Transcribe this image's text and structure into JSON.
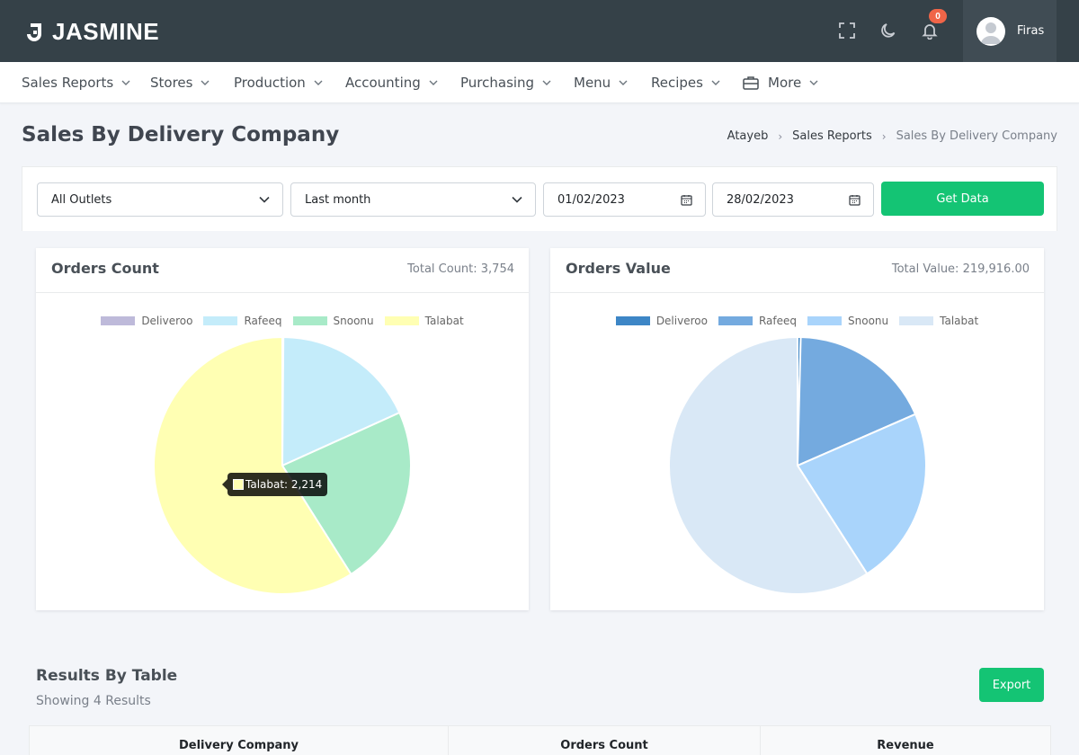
{
  "app": {
    "brand": "JASMINE"
  },
  "header": {
    "notifications_count": "0",
    "user_name": "Firas",
    "icons": [
      "fullscreen-icon",
      "moon-icon",
      "bell-icon",
      "user-avatar-icon"
    ]
  },
  "nav": {
    "items": [
      {
        "label": "Sales Reports"
      },
      {
        "label": "Stores"
      },
      {
        "label": "Production"
      },
      {
        "label": "Accounting"
      },
      {
        "label": "Purchasing"
      },
      {
        "label": "Menu"
      },
      {
        "label": "Recipes"
      },
      {
        "label": "More",
        "icon": "briefcase-icon"
      }
    ]
  },
  "page": {
    "title": "Sales By Delivery Company",
    "breadcrumb": [
      "Atayeb",
      "Sales Reports",
      "Sales By Delivery Company"
    ]
  },
  "filters": {
    "outlet": "All Outlets",
    "period": "Last month",
    "date_from": "01/02/2023",
    "date_to": "28/02/2023",
    "get_data_label": "Get Data"
  },
  "orders_count_card": {
    "title": "Orders Count",
    "total_label": "Total Count: 3,754",
    "tooltip": "Talabat: 2,214"
  },
  "orders_value_card": {
    "title": "Orders Value",
    "total_label": "Total Value: 219,916.00"
  },
  "chart_data": [
    {
      "type": "pie",
      "categories": [
        "Deliveroo",
        "Rafeeq",
        "Snoonu",
        "Talabat"
      ],
      "values": [
        5,
        680,
        855,
        2214
      ],
      "colors": [
        "#bebada",
        "#c4ecfa",
        "#a8eac8",
        "#ffffb3"
      ],
      "legend": "top"
    },
    {
      "type": "pie",
      "categories": [
        "Deliveroo",
        "Rafeeq",
        "Snoonu",
        "Talabat"
      ],
      "values": [
        870,
        39700,
        49400,
        129946
      ],
      "colors": [
        "#3d86c6",
        "#74aadf",
        "#a9d4fb",
        "#d9e8f6"
      ],
      "legend": "top"
    }
  ],
  "results": {
    "title": "Results By Table",
    "subtitle": "Showing 4 Results",
    "export_label": "Export",
    "columns": [
      "Delivery Company",
      "Orders Count",
      "Revenue"
    ]
  },
  "colors": {
    "topbar": "#354148",
    "accent_green": "#14c474",
    "badge": "#f06548"
  }
}
